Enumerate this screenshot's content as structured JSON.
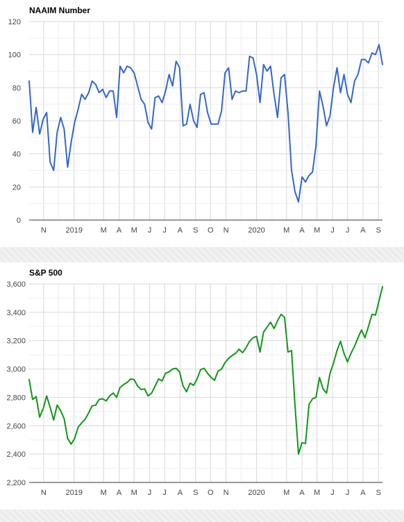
{
  "colors": {
    "naaim_line": "#3366cc",
    "sp500_line": "#109618",
    "grid": "#d9d9d9",
    "grid_minor": "#efefef",
    "axis": "#333333"
  },
  "chart_data": [
    {
      "type": "line",
      "title": "NAAIM Number",
      "xlabel": "",
      "ylabel": "",
      "ylim": [
        0,
        120
      ],
      "yticks": [
        0,
        20,
        40,
        60,
        80,
        100,
        120
      ],
      "ytick_labels": [
        "0",
        "20",
        "40",
        "60",
        "80",
        "100",
        "120"
      ],
      "xlim": [
        "2018-10-03",
        "2020-09-09"
      ],
      "xticks": [
        {
          "label": "N",
          "date": "2018-11-01"
        },
        {
          "label": "2019",
          "date": "2019-01-01"
        },
        {
          "label": "M",
          "date": "2019-03-01"
        },
        {
          "label": "A",
          "date": "2019-04-01"
        },
        {
          "label": "M",
          "date": "2019-05-01"
        },
        {
          "label": "J",
          "date": "2019-06-01"
        },
        {
          "label": "J",
          "date": "2019-07-01"
        },
        {
          "label": "A",
          "date": "2019-08-01"
        },
        {
          "label": "S",
          "date": "2019-09-01"
        },
        {
          "label": "O",
          "date": "2019-10-01"
        },
        {
          "label": "N",
          "date": "2019-11-01"
        },
        {
          "label": "2020",
          "date": "2020-01-01"
        },
        {
          "label": "M",
          "date": "2020-03-01"
        },
        {
          "label": "A",
          "date": "2020-04-01"
        },
        {
          "label": "M",
          "date": "2020-05-01"
        },
        {
          "label": "J",
          "date": "2020-06-01"
        },
        {
          "label": "J",
          "date": "2020-07-01"
        },
        {
          "label": "A",
          "date": "2020-08-01"
        },
        {
          "label": "S",
          "date": "2020-09-01"
        }
      ],
      "grid": true,
      "series": [
        {
          "start_date": "2018-10-03",
          "interval_days": 7,
          "values": [
            84,
            53,
            68,
            52,
            61,
            65,
            35,
            30,
            53,
            62,
            55,
            32,
            47,
            59,
            67,
            76,
            73,
            77,
            84,
            82,
            77,
            79,
            74,
            78,
            78,
            62,
            93,
            89,
            93,
            92,
            89,
            81,
            73,
            70,
            59,
            55,
            74,
            75,
            71,
            78,
            88,
            81,
            96,
            92,
            57,
            58,
            70,
            60,
            56,
            76,
            77,
            65,
            58,
            58,
            58,
            66,
            89,
            92,
            73,
            78,
            77,
            78,
            78,
            99,
            98,
            88,
            71,
            94,
            90,
            93,
            76,
            62,
            86,
            88,
            65,
            30,
            17,
            11,
            26,
            23,
            27,
            29,
            45,
            78,
            69,
            57,
            63,
            80,
            92,
            77,
            88,
            76,
            71,
            84,
            88,
            97,
            97,
            95,
            101,
            100,
            106,
            94
          ]
        }
      ]
    },
    {
      "type": "line",
      "title": "S&P 500",
      "xlabel": "",
      "ylabel": "",
      "ylim": [
        2200,
        3600
      ],
      "yticks": [
        2200,
        2400,
        2600,
        2800,
        3000,
        3200,
        3400,
        3600
      ],
      "ytick_labels": [
        "2,200",
        "2,400",
        "2,600",
        "2,800",
        "3,000",
        "3,200",
        "3,400",
        "3,600"
      ],
      "xlim": [
        "2018-10-03",
        "2020-09-09"
      ],
      "xticks": [
        {
          "label": "N",
          "date": "2018-11-01"
        },
        {
          "label": "2019",
          "date": "2019-01-01"
        },
        {
          "label": "M",
          "date": "2019-03-01"
        },
        {
          "label": "A",
          "date": "2019-04-01"
        },
        {
          "label": "M",
          "date": "2019-05-01"
        },
        {
          "label": "J",
          "date": "2019-06-01"
        },
        {
          "label": "J",
          "date": "2019-07-01"
        },
        {
          "label": "A",
          "date": "2019-08-01"
        },
        {
          "label": "S",
          "date": "2019-09-01"
        },
        {
          "label": "O",
          "date": "2019-10-01"
        },
        {
          "label": "N",
          "date": "2019-11-01"
        },
        {
          "label": "2020",
          "date": "2020-01-01"
        },
        {
          "label": "M",
          "date": "2020-03-01"
        },
        {
          "label": "A",
          "date": "2020-04-01"
        },
        {
          "label": "M",
          "date": "2020-05-01"
        },
        {
          "label": "J",
          "date": "2020-06-01"
        },
        {
          "label": "J",
          "date": "2020-07-01"
        },
        {
          "label": "A",
          "date": "2020-08-01"
        },
        {
          "label": "S",
          "date": "2020-09-01"
        }
      ],
      "grid": true,
      "series": [
        {
          "start_date": "2018-10-03",
          "interval_days": 7,
          "values": [
            2925,
            2785,
            2805,
            2660,
            2720,
            2810,
            2730,
            2640,
            2745,
            2705,
            2650,
            2510,
            2470,
            2510,
            2590,
            2620,
            2645,
            2690,
            2740,
            2745,
            2785,
            2790,
            2775,
            2810,
            2830,
            2800,
            2870,
            2890,
            2905,
            2930,
            2925,
            2880,
            2855,
            2860,
            2810,
            2830,
            2880,
            2930,
            2915,
            2970,
            2980,
            3000,
            3005,
            2980,
            2880,
            2840,
            2900,
            2885,
            2930,
            2995,
            3005,
            2970,
            2940,
            2920,
            2985,
            3000,
            3045,
            3075,
            3095,
            3110,
            3140,
            3115,
            3150,
            3195,
            3220,
            3230,
            3120,
            3260,
            3295,
            3330,
            3285,
            3340,
            3385,
            3365,
            3120,
            3130,
            2740,
            2400,
            2480,
            2475,
            2750,
            2790,
            2800,
            2940,
            2860,
            2830,
            2970,
            3040,
            3130,
            3195,
            3110,
            3050,
            3110,
            3160,
            3220,
            3275,
            3220,
            3300,
            3385,
            3380,
            3480,
            3580
          ]
        }
      ]
    }
  ]
}
